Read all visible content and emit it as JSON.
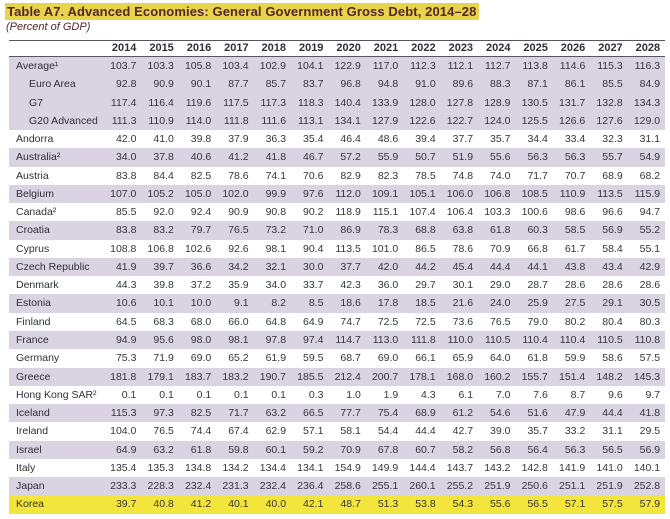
{
  "title": "Table A7. Advanced Economies: General Government Gross Debt, 2014–28",
  "subtitle": "(Percent of GDP)",
  "colors": {
    "title_highlight": "#e8d44b",
    "title_text": "#54262c",
    "row_shade": "#d9d3e2",
    "row_highlight": "#f3e53c",
    "rule_line": "#55555f",
    "body_text": "#35353d"
  },
  "chart_data": {
    "type": "table",
    "columns": [
      "2014",
      "2015",
      "2016",
      "2017",
      "2018",
      "2019",
      "2020",
      "2021",
      "2022",
      "2023",
      "2024",
      "2025",
      "2026",
      "2027",
      "2028"
    ],
    "rows": [
      {
        "name": "Average¹",
        "indent": false,
        "style": "shade",
        "values": [
          103.7,
          103.3,
          105.8,
          103.4,
          102.9,
          104.1,
          122.9,
          117.0,
          112.3,
          112.1,
          112.7,
          113.8,
          114.6,
          115.3,
          116.3
        ]
      },
      {
        "name": "Euro Area",
        "indent": true,
        "style": "shade",
        "values": [
          92.8,
          90.9,
          90.1,
          87.7,
          85.7,
          83.7,
          96.8,
          94.8,
          91.0,
          89.6,
          88.3,
          87.1,
          86.1,
          85.5,
          84.9
        ]
      },
      {
        "name": "G7",
        "indent": true,
        "style": "shade",
        "values": [
          117.4,
          116.4,
          119.6,
          117.5,
          117.3,
          118.3,
          140.4,
          133.9,
          128.0,
          127.8,
          128.9,
          130.5,
          131.7,
          132.8,
          134.3
        ]
      },
      {
        "name": "G20 Advanced",
        "indent": true,
        "style": "shade",
        "values": [
          111.3,
          110.9,
          114.0,
          111.8,
          111.6,
          113.1,
          134.1,
          127.9,
          122.6,
          122.7,
          124.0,
          125.5,
          126.6,
          127.6,
          129.0
        ]
      },
      {
        "name": "Andorra",
        "indent": false,
        "style": "plain",
        "values": [
          42.0,
          41.0,
          39.8,
          37.9,
          36.3,
          35.4,
          46.4,
          48.6,
          39.4,
          37.7,
          35.7,
          34.4,
          33.4,
          32.3,
          31.1
        ]
      },
      {
        "name": "Australia²",
        "indent": false,
        "style": "shade",
        "values": [
          34.0,
          37.8,
          40.6,
          41.2,
          41.8,
          46.7,
          57.2,
          55.9,
          50.7,
          51.9,
          55.6,
          56.3,
          56.3,
          55.7,
          54.9
        ]
      },
      {
        "name": "Austria",
        "indent": false,
        "style": "plain",
        "values": [
          83.8,
          84.4,
          82.5,
          78.6,
          74.1,
          70.6,
          82.9,
          82.3,
          78.5,
          74.8,
          74.0,
          71.7,
          70.7,
          68.9,
          68.2
        ]
      },
      {
        "name": "Belgium",
        "indent": false,
        "style": "shade",
        "values": [
          107.0,
          105.2,
          105.0,
          102.0,
          99.9,
          97.6,
          112.0,
          109.1,
          105.1,
          106.0,
          106.8,
          108.5,
          110.9,
          113.5,
          115.9
        ]
      },
      {
        "name": "Canada²",
        "indent": false,
        "style": "plain",
        "values": [
          85.5,
          92.0,
          92.4,
          90.9,
          90.8,
          90.2,
          118.9,
          115.1,
          107.4,
          106.4,
          103.3,
          100.6,
          98.6,
          96.6,
          94.7
        ]
      },
      {
        "name": "Croatia",
        "indent": false,
        "style": "shade",
        "values": [
          83.8,
          83.2,
          79.7,
          76.5,
          73.2,
          71.0,
          86.9,
          78.3,
          68.8,
          63.8,
          61.8,
          60.3,
          58.5,
          56.9,
          55.2
        ]
      },
      {
        "name": "Cyprus",
        "indent": false,
        "style": "plain",
        "values": [
          108.8,
          106.8,
          102.6,
          92.6,
          98.1,
          90.4,
          113.5,
          101.0,
          86.5,
          78.6,
          70.9,
          66.8,
          61.7,
          58.4,
          55.1
        ]
      },
      {
        "name": "Czech Republic",
        "indent": false,
        "style": "shade",
        "values": [
          41.9,
          39.7,
          36.6,
          34.2,
          32.1,
          30.0,
          37.7,
          42.0,
          44.2,
          45.4,
          44.4,
          44.1,
          43.8,
          43.4,
          42.9
        ]
      },
      {
        "name": "Denmark",
        "indent": false,
        "style": "plain",
        "values": [
          44.3,
          39.8,
          37.2,
          35.9,
          34.0,
          33.7,
          42.3,
          36.0,
          29.7,
          30.1,
          29.0,
          28.7,
          28.6,
          28.6,
          28.6
        ]
      },
      {
        "name": "Estonia",
        "indent": false,
        "style": "shade",
        "values": [
          10.6,
          10.1,
          10.0,
          9.1,
          8.2,
          8.5,
          18.6,
          17.8,
          18.5,
          21.6,
          24.0,
          25.9,
          27.5,
          29.1,
          30.5
        ]
      },
      {
        "name": "Finland",
        "indent": false,
        "style": "plain",
        "values": [
          64.5,
          68.3,
          68.0,
          66.0,
          64.8,
          64.9,
          74.7,
          72.5,
          72.5,
          73.6,
          76.5,
          79.0,
          80.2,
          80.4,
          80.3
        ]
      },
      {
        "name": "France",
        "indent": false,
        "style": "shade",
        "values": [
          94.9,
          95.6,
          98.0,
          98.1,
          97.8,
          97.4,
          114.7,
          113.0,
          111.8,
          110.0,
          110.5,
          110.4,
          110.4,
          110.5,
          110.8
        ]
      },
      {
        "name": "Germany",
        "indent": false,
        "style": "plain",
        "values": [
          75.3,
          71.9,
          69.0,
          65.2,
          61.9,
          59.5,
          68.7,
          69.0,
          66.1,
          65.9,
          64.0,
          61.8,
          59.9,
          58.6,
          57.5
        ]
      },
      {
        "name": "Greece",
        "indent": false,
        "style": "shade",
        "values": [
          181.8,
          179.1,
          183.7,
          183.2,
          190.7,
          185.5,
          212.4,
          200.7,
          178.1,
          168.0,
          160.2,
          155.7,
          151.4,
          148.2,
          145.3
        ]
      },
      {
        "name": "Hong Kong SAR²",
        "indent": false,
        "style": "plain",
        "values": [
          0.1,
          0.1,
          0.1,
          0.1,
          0.1,
          0.3,
          1.0,
          1.9,
          4.3,
          6.1,
          7.0,
          7.6,
          8.7,
          9.6,
          9.7
        ]
      },
      {
        "name": "Iceland",
        "indent": false,
        "style": "shade",
        "values": [
          115.3,
          97.3,
          82.5,
          71.7,
          63.2,
          66.5,
          77.7,
          75.4,
          68.9,
          61.2,
          54.6,
          51.6,
          47.9,
          44.4,
          41.8
        ]
      },
      {
        "name": "Ireland",
        "indent": false,
        "style": "plain",
        "values": [
          104.0,
          76.5,
          74.4,
          67.4,
          62.9,
          57.1,
          58.1,
          54.4,
          44.4,
          42.7,
          39.0,
          35.7,
          33.2,
          31.1,
          29.5
        ]
      },
      {
        "name": "Israel",
        "indent": false,
        "style": "shade",
        "values": [
          64.9,
          63.2,
          61.8,
          59.8,
          60.1,
          59.2,
          70.9,
          67.8,
          60.7,
          58.2,
          56.8,
          56.4,
          56.3,
          56.5,
          56.9
        ]
      },
      {
        "name": "Italy",
        "indent": false,
        "style": "plain",
        "values": [
          135.4,
          135.3,
          134.8,
          134.2,
          134.4,
          134.1,
          154.9,
          149.9,
          144.4,
          143.7,
          143.2,
          142.8,
          141.9,
          141.0,
          140.1
        ]
      },
      {
        "name": "Japan",
        "indent": false,
        "style": "shade",
        "values": [
          233.3,
          228.3,
          232.4,
          231.3,
          232.4,
          236.4,
          258.6,
          255.1,
          260.1,
          255.2,
          251.9,
          250.6,
          251.1,
          251.9,
          252.8
        ]
      },
      {
        "name": "Korea",
        "indent": false,
        "style": "highlight",
        "values": [
          39.7,
          40.8,
          41.2,
          40.1,
          40.0,
          42.1,
          48.7,
          51.3,
          53.8,
          54.3,
          55.6,
          56.5,
          57.1,
          57.5,
          57.9
        ]
      }
    ]
  }
}
